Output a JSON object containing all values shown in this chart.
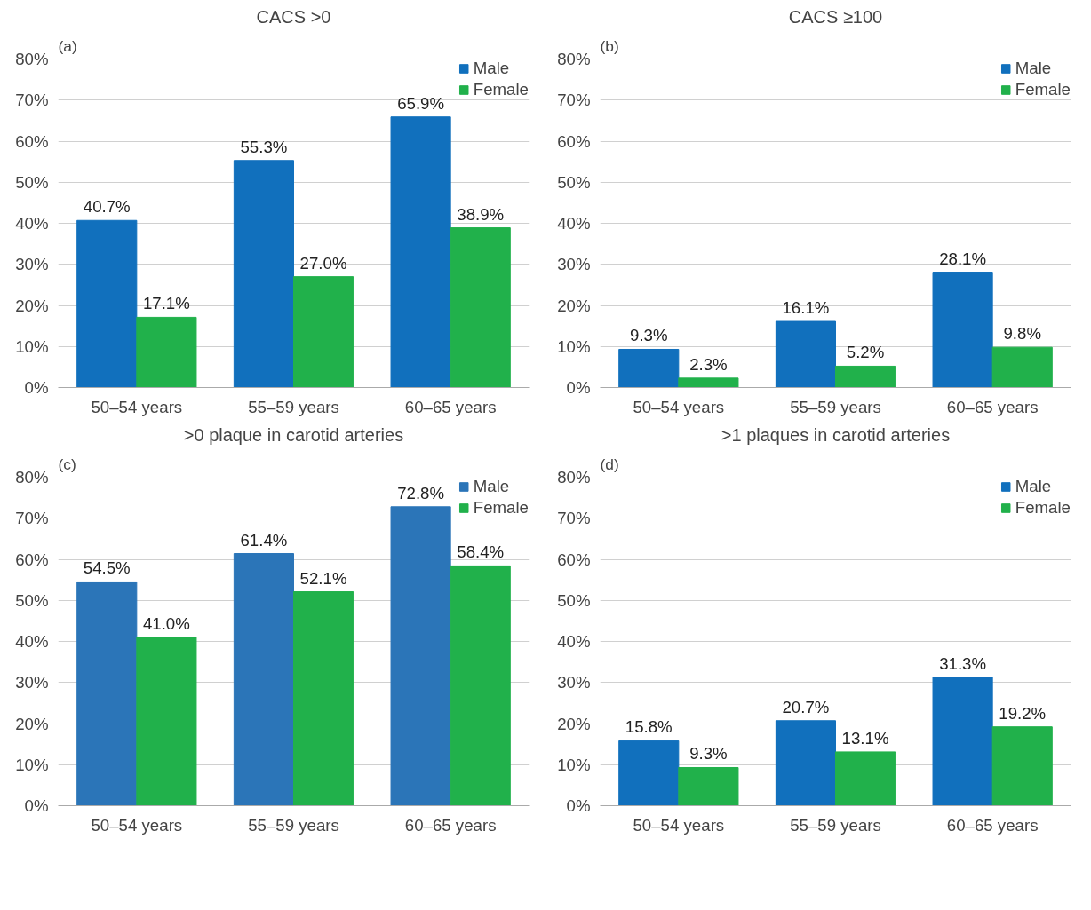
{
  "chart_data": [
    {
      "type": "bar",
      "title": "CACS >0",
      "annotations": [
        "(a)"
      ],
      "categories": [
        "50–54 years",
        "55–59 years",
        "60–65 years"
      ],
      "series": [
        {
          "name": "Male",
          "color": "#1170bd",
          "values": [
            40.7,
            55.3,
            65.9
          ],
          "value_labels": [
            "40.7%",
            "55.3%",
            "65.9%"
          ]
        },
        {
          "name": "Female",
          "color": "#21b14b",
          "values": [
            17.1,
            27.0,
            38.9
          ],
          "value_labels": [
            "17.1%",
            "27.0%",
            "38.9%"
          ]
        }
      ],
      "ylim": [
        0,
        80
      ],
      "yticks": [
        {
          "value": 0,
          "label": "0%"
        },
        {
          "value": 10,
          "label": "10%"
        },
        {
          "value": 20,
          "label": "20%"
        },
        {
          "value": 30,
          "label": "30%"
        },
        {
          "value": 40,
          "label": "40%"
        },
        {
          "value": 50,
          "label": "50%"
        },
        {
          "value": 60,
          "label": "60%"
        },
        {
          "value": 70,
          "label": "70%"
        },
        {
          "value": 80,
          "label": "80%"
        }
      ],
      "grid": "y",
      "legend": "top right"
    },
    {
      "type": "bar",
      "title": "CACS ≥100",
      "annotations": [
        "(b)"
      ],
      "categories": [
        "50–54 years",
        "55–59 years",
        "60–65 years"
      ],
      "series": [
        {
          "name": "Male",
          "color": "#1170bd",
          "values": [
            9.3,
            16.1,
            28.1
          ],
          "value_labels": [
            "9.3%",
            "16.1%",
            "28.1%"
          ]
        },
        {
          "name": "Female",
          "color": "#21b14b",
          "values": [
            2.3,
            5.2,
            9.8
          ],
          "value_labels": [
            "2.3%",
            "5.2%",
            "9.8%"
          ]
        }
      ],
      "ylim": [
        0,
        80
      ],
      "yticks": [
        {
          "value": 0,
          "label": "0%"
        },
        {
          "value": 10,
          "label": "10%"
        },
        {
          "value": 20,
          "label": "20%"
        },
        {
          "value": 30,
          "label": "30%"
        },
        {
          "value": 40,
          "label": "40%"
        },
        {
          "value": 50,
          "label": "50%"
        },
        {
          "value": 60,
          "label": "60%"
        },
        {
          "value": 70,
          "label": "70%"
        },
        {
          "value": 80,
          "label": "80%"
        }
      ],
      "grid": "y",
      "legend": "top right"
    },
    {
      "type": "bar",
      "title": ">0 plaque in carotid arteries",
      "annotations": [
        "(c)"
      ],
      "categories": [
        "50–54 years",
        "55–59 years",
        "60–65 years"
      ],
      "series": [
        {
          "name": "Male",
          "color": "#2b75b8",
          "values": [
            54.5,
            61.4,
            72.8
          ],
          "value_labels": [
            "54.5%",
            "61.4%",
            "72.8%"
          ]
        },
        {
          "name": "Female",
          "color": "#21b14b",
          "values": [
            41.0,
            52.1,
            58.4
          ],
          "value_labels": [
            "41.0%",
            "52.1%",
            "58.4%"
          ]
        }
      ],
      "ylim": [
        0,
        80
      ],
      "yticks": [
        {
          "value": 0,
          "label": "0%"
        },
        {
          "value": 10,
          "label": "10%"
        },
        {
          "value": 20,
          "label": "20%"
        },
        {
          "value": 30,
          "label": "30%"
        },
        {
          "value": 40,
          "label": "40%"
        },
        {
          "value": 50,
          "label": "50%"
        },
        {
          "value": 60,
          "label": "60%"
        },
        {
          "value": 70,
          "label": "70%"
        },
        {
          "value": 80,
          "label": "80%"
        }
      ],
      "grid": "y",
      "legend": "top right"
    },
    {
      "type": "bar",
      "title": ">1 plaques in carotid arteries",
      "annotations": [
        "(d)"
      ],
      "categories": [
        "50–54 years",
        "55–59 years",
        "60–65 years"
      ],
      "series": [
        {
          "name": "Male",
          "color": "#1170bd",
          "values": [
            15.8,
            20.7,
            31.3
          ],
          "value_labels": [
            "15.8%",
            "20.7%",
            "31.3%"
          ]
        },
        {
          "name": "Female",
          "color": "#21b14b",
          "values": [
            9.3,
            13.1,
            19.2
          ],
          "value_labels": [
            "9.3%",
            "13.1%",
            "19.2%"
          ]
        }
      ],
      "ylim": [
        0,
        80
      ],
      "yticks": [
        {
          "value": 0,
          "label": "0%"
        },
        {
          "value": 10,
          "label": "10%"
        },
        {
          "value": 20,
          "label": "20%"
        },
        {
          "value": 30,
          "label": "30%"
        },
        {
          "value": 40,
          "label": "40%"
        },
        {
          "value": 50,
          "label": "50%"
        },
        {
          "value": 60,
          "label": "60%"
        },
        {
          "value": 70,
          "label": "70%"
        },
        {
          "value": 80,
          "label": "80%"
        }
      ],
      "grid": "y",
      "legend": "top right"
    }
  ]
}
